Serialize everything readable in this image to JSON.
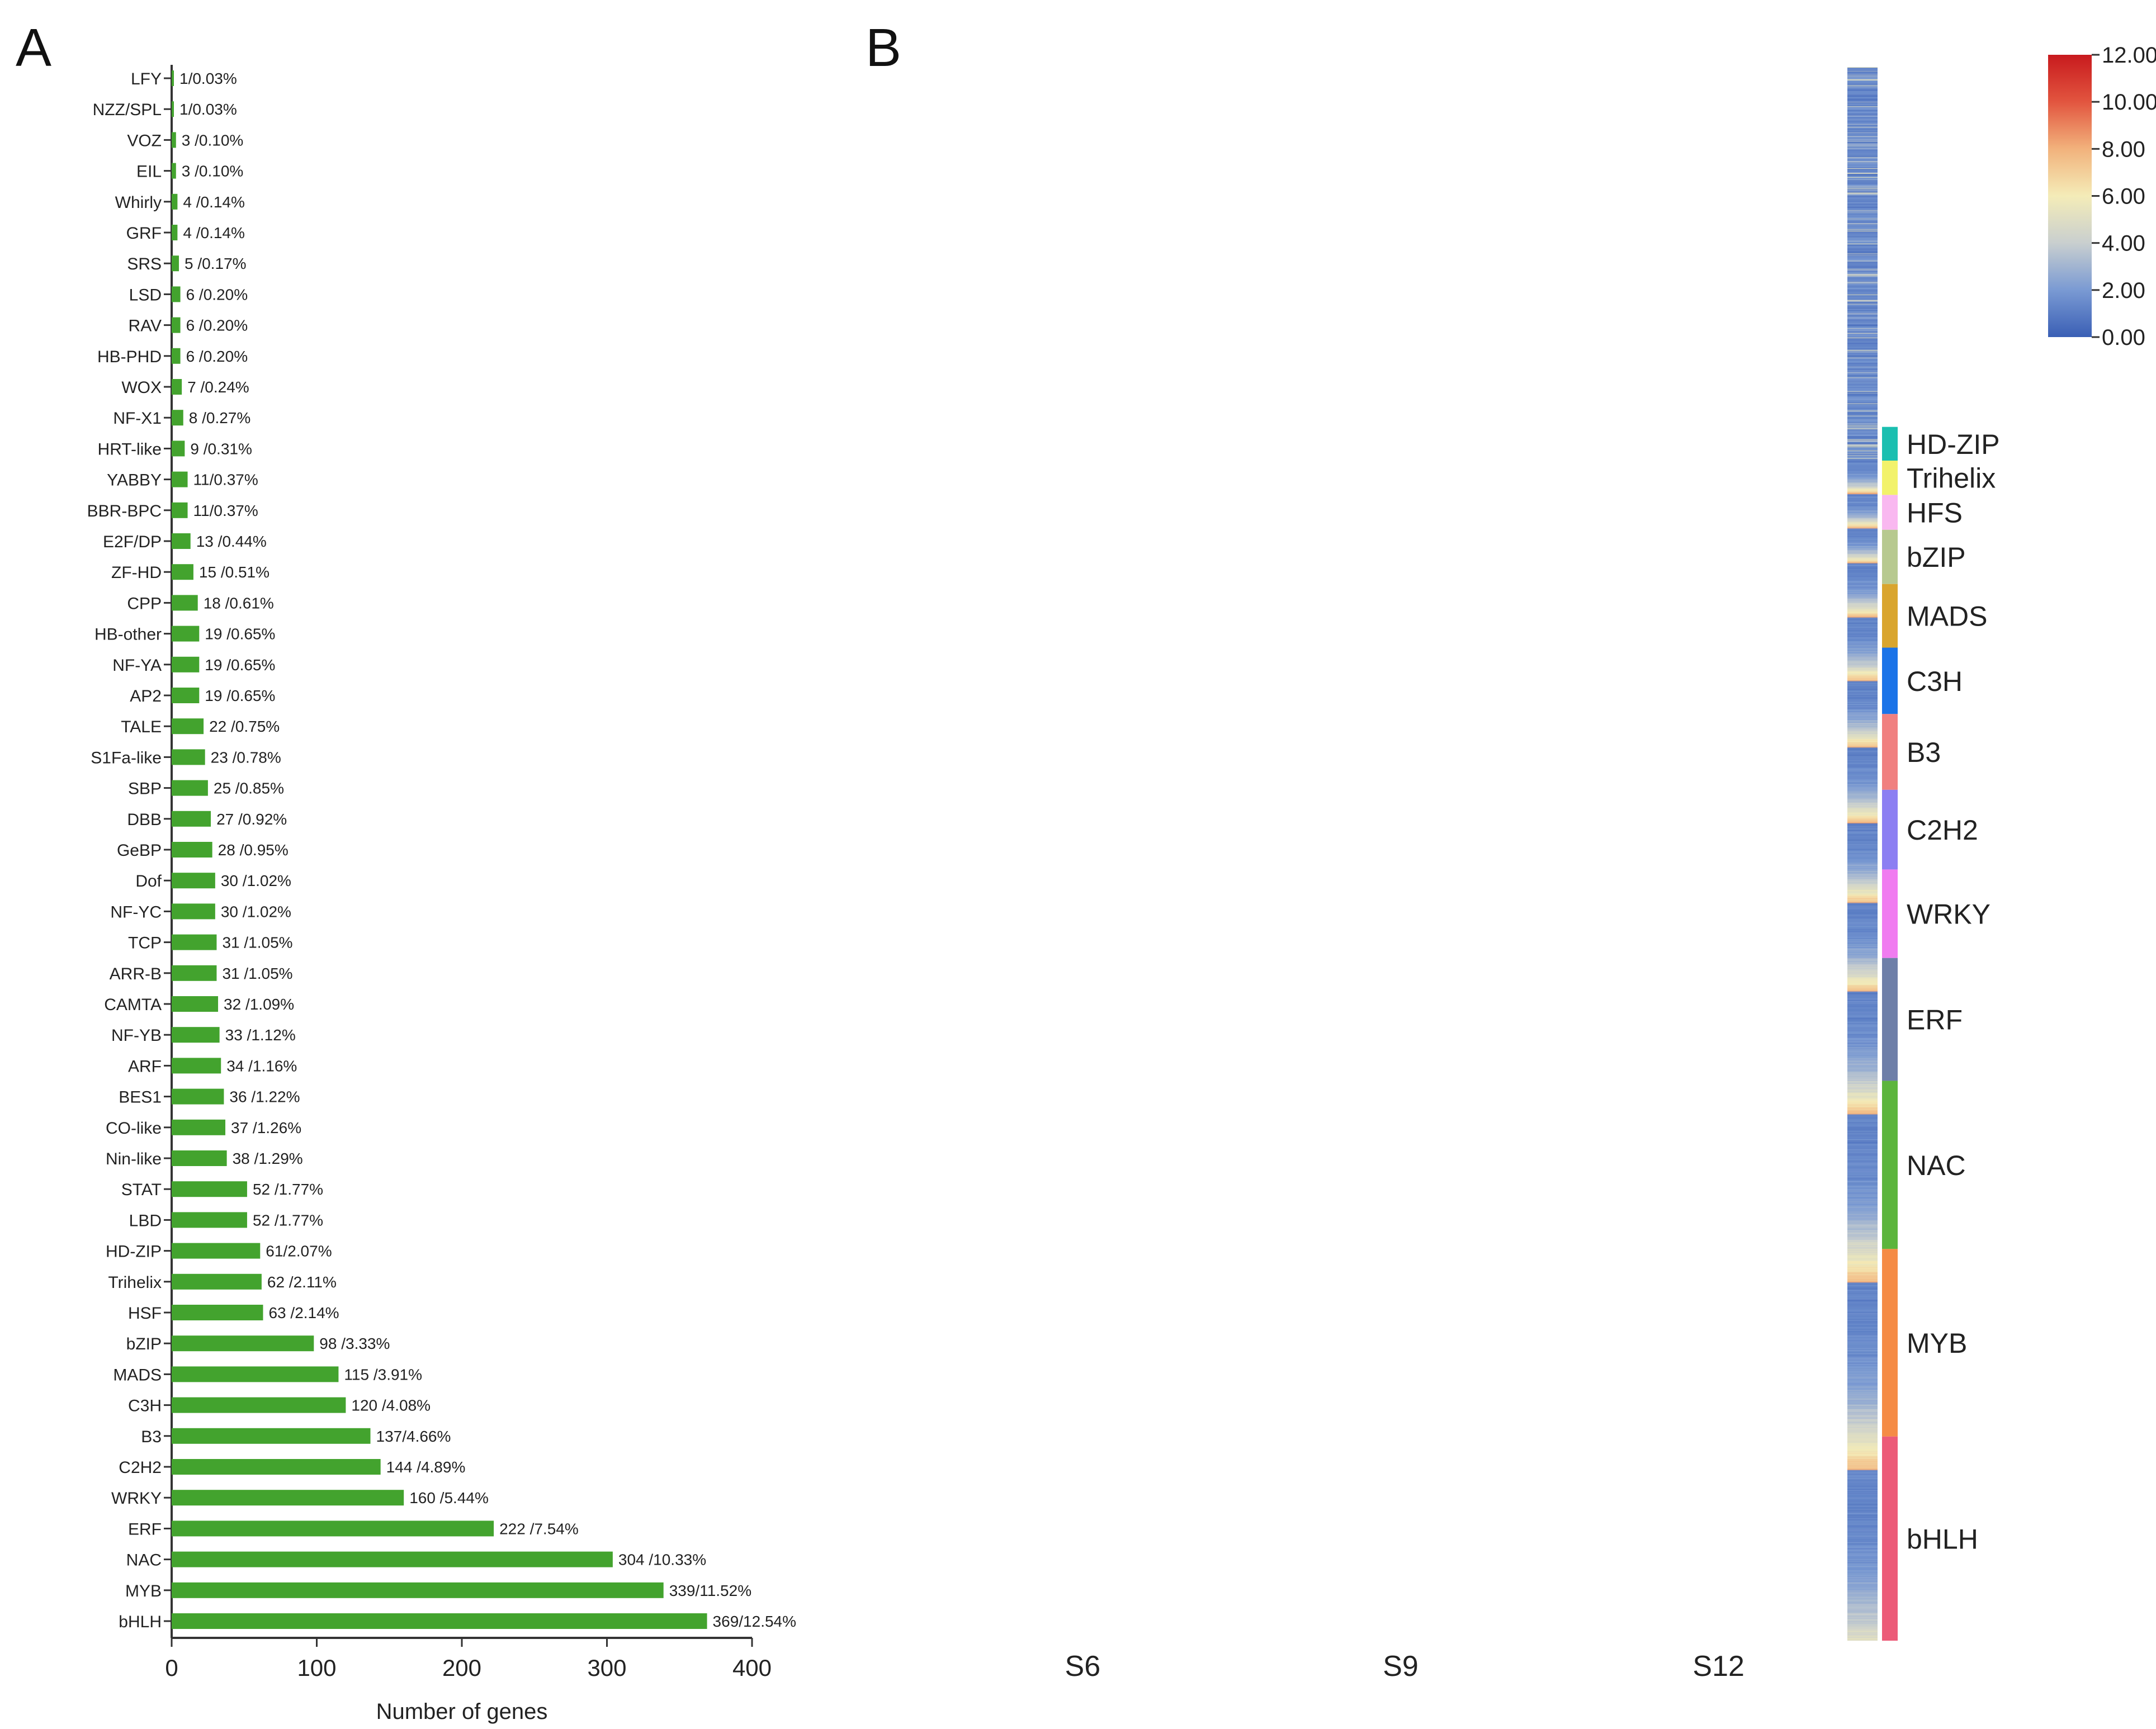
{
  "panels": {
    "a_label": "A",
    "b_label": "B"
  },
  "chart_data": [
    {
      "type": "bar",
      "orientation": "horizontal",
      "xlabel": "Number of genes",
      "xlim": [
        0,
        400
      ],
      "xticks": [
        "0",
        "100",
        "200",
        "300",
        "400"
      ],
      "bar_color": "#43a32e",
      "categories": [
        "LFY",
        "NZZ/SPL",
        "VOZ",
        "EIL",
        "Whirly",
        "GRF",
        "SRS",
        "LSD",
        "RAV",
        "HB-PHD",
        "WOX",
        "NF-X1",
        "HRT-like",
        "YABBY",
        "BBR-BPC",
        "E2F/DP",
        "ZF-HD",
        "CPP",
        "HB-other",
        "NF-YA",
        "AP2",
        "TALE",
        "S1Fa-like",
        "SBP",
        "DBB",
        "GeBP",
        "Dof",
        "NF-YC",
        "TCP",
        "ARR-B",
        "CAMTA",
        "NF-YB",
        "ARF",
        "BES1",
        "CO-like",
        "Nin-like",
        "STAT",
        "LBD",
        "HD-ZIP",
        "Trihelix",
        "HSF",
        "bZIP",
        "MADS",
        "C3H",
        "B3",
        "C2H2",
        "WRKY",
        "ERF",
        "NAC",
        "MYB",
        "bHLH"
      ],
      "values": [
        1,
        1,
        3,
        3,
        4,
        4,
        5,
        6,
        6,
        6,
        7,
        8,
        9,
        11,
        11,
        13,
        15,
        18,
        19,
        19,
        19,
        22,
        23,
        25,
        27,
        28,
        30,
        30,
        31,
        31,
        32,
        33,
        34,
        36,
        37,
        38,
        52,
        52,
        61,
        62,
        63,
        98,
        115,
        120,
        137,
        144,
        160,
        222,
        304,
        339,
        369
      ],
      "labels": [
        "1/0.03%",
        "1/0.03%",
        "3 /0.10%",
        "3 /0.10%",
        "4 /0.14%",
        "4 /0.14%",
        "5 /0.17%",
        "6 /0.20%",
        "6 /0.20%",
        "6 /0.20%",
        "7 /0.24%",
        "8 /0.27%",
        "9 /0.31%",
        "11/0.37%",
        "11/0.37%",
        "13 /0.44%",
        "15 /0.51%",
        "18 /0.61%",
        "19 /0.65%",
        "19 /0.65%",
        "19 /0.65%",
        "22 /0.75%",
        "23 /0.78%",
        "25 /0.85%",
        "27 /0.92%",
        "28 /0.95%",
        "30 /1.02%",
        "30 /1.02%",
        "31 /1.05%",
        "31 /1.05%",
        "32 /1.09%",
        "33 /1.12%",
        "34 /1.16%",
        "36 /1.22%",
        "37 /1.26%",
        "38 /1.29%",
        "52 /1.77%",
        "52 /1.77%",
        "61/2.07%",
        "62 /2.11%",
        "63 /2.14%",
        "98 /3.33%",
        "115 /3.91%",
        "120 /4.08%",
        "137/4.66%",
        "144 /4.89%",
        "160 /5.44%",
        "222 /7.54%",
        "304 /10.33%",
        "339/11.52%",
        "369/12.54%"
      ]
    },
    {
      "type": "heatmap",
      "columns": [
        "S6",
        "S9",
        "S12"
      ],
      "row_groups": [
        {
          "name": "",
          "count": 711,
          "color": "#ffffff"
        },
        {
          "name": "HD-ZIP",
          "count": 61,
          "color": "#1bbfb0"
        },
        {
          "name": "Trihelix",
          "count": 62,
          "color": "#f2f26b"
        },
        {
          "name": "HFS",
          "count": 63,
          "color": "#f9b8f0"
        },
        {
          "name": "bZIP",
          "count": 98,
          "color": "#b7c98f"
        },
        {
          "name": "MADS",
          "count": 115,
          "color": "#d9a52e"
        },
        {
          "name": "C3H",
          "count": 120,
          "color": "#1a73e8"
        },
        {
          "name": "B3",
          "count": 137,
          "color": "#f08080"
        },
        {
          "name": "C2H2",
          "count": 144,
          "color": "#8c7ff2"
        },
        {
          "name": "WRKY",
          "count": 160,
          "color": "#f07cf0"
        },
        {
          "name": "ERF",
          "count": 222,
          "color": "#6e7fa8"
        },
        {
          "name": "NAC",
          "count": 304,
          "color": "#5cb53d"
        },
        {
          "name": "MYB",
          "count": 339,
          "color": "#f58b45"
        },
        {
          "name": "bHLH",
          "count": 369,
          "color": "#ec5b78"
        }
      ],
      "color_scale": {
        "min": 0,
        "max": 12,
        "ticks": [
          "0.00",
          "2.00",
          "4.00",
          "6.00",
          "8.00",
          "10.00",
          "12.00"
        ],
        "stops": [
          "#3a5fb5",
          "#7a9ad3",
          "#c9cfcf",
          "#f4ecb8",
          "#f2b27c",
          "#e2553f",
          "#c81a1e"
        ]
      }
    }
  ]
}
